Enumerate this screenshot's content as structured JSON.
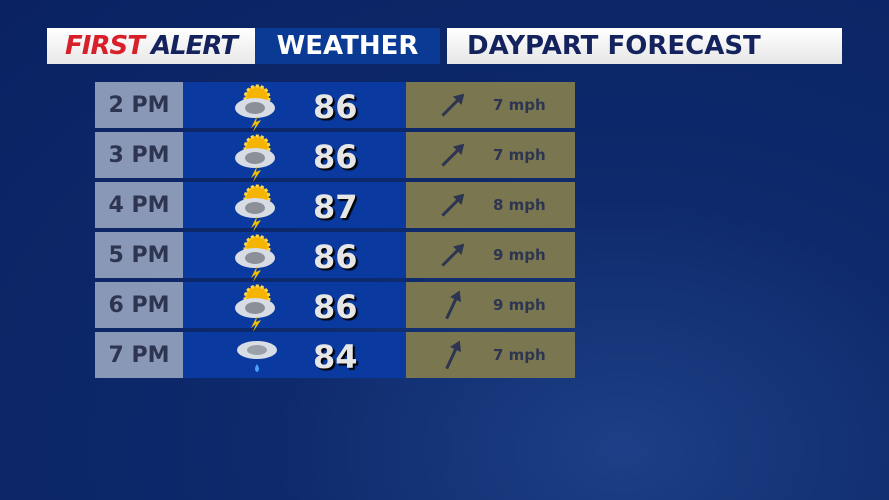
{
  "header": {
    "first": "FIRST",
    "alert": "ALERT",
    "weather": "WEATHER",
    "title": "DAYPART FORECAST"
  },
  "rows": [
    {
      "time": "2 PM",
      "icon": "partly-cloudy-thunderstorm-icon",
      "temp": "86",
      "wind_dir_deg": 45,
      "wind": "7 mph"
    },
    {
      "time": "3 PM",
      "icon": "partly-cloudy-thunderstorm-icon",
      "temp": "86",
      "wind_dir_deg": 45,
      "wind": "7 mph"
    },
    {
      "time": "4 PM",
      "icon": "partly-cloudy-thunderstorm-icon",
      "temp": "87",
      "wind_dir_deg": 45,
      "wind": "8 mph"
    },
    {
      "time": "5 PM",
      "icon": "partly-cloudy-thunderstorm-icon",
      "temp": "86",
      "wind_dir_deg": 45,
      "wind": "9 mph"
    },
    {
      "time": "6 PM",
      "icon": "partly-cloudy-thunderstorm-icon",
      "temp": "86",
      "wind_dir_deg": 25,
      "wind": "9 mph"
    },
    {
      "time": "7 PM",
      "icon": "cloudy-rain-icon",
      "temp": "84",
      "wind_dir_deg": 25,
      "wind": "7 mph"
    }
  ]
}
